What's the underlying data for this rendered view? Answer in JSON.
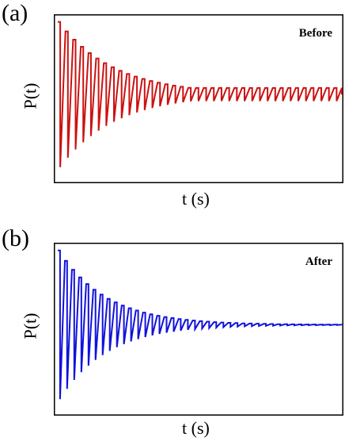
{
  "chart_data": [
    {
      "panel_label": "(a)",
      "type": "line",
      "tag": "Before",
      "xlabel": "t (s)",
      "ylabel": "P(t)",
      "color": "#cc1111",
      "decay": 0.14,
      "period": 1.0,
      "pulses": 37,
      "baseline_shift": 0.0,
      "amplitude_start": 1.0,
      "amplitude_floor": 0.09,
      "grid": false,
      "xticks": false,
      "yticks": false
    },
    {
      "panel_label": "(b)",
      "type": "line",
      "tag": "After",
      "xlabel": "t (s)",
      "ylabel": "P(t)",
      "color": "#1111dd",
      "decay": 0.15,
      "period": 1.0,
      "pulses": 40,
      "baseline_shift": 0.0,
      "amplitude_start": 1.0,
      "amplitude_floor": 0.0,
      "grid": false,
      "xticks": false,
      "yticks": false
    }
  ]
}
